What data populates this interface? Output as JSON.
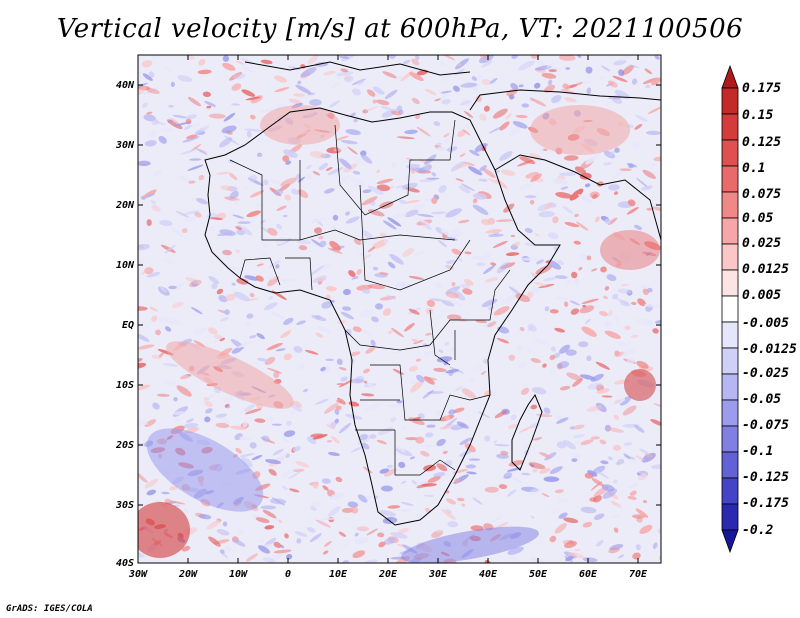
{
  "title": "Vertical velocity [m/s] at 600hPa, VT: 2021100506",
  "footer": "GrADS: IGES/COLA",
  "map": {
    "lon_range": [
      -30,
      75
    ],
    "lat_range": [
      -40,
      45
    ],
    "lat_labels": [
      "40N",
      "30N",
      "20N",
      "10N",
      "EQ",
      "10S",
      "20S",
      "30S",
      "40S"
    ],
    "lon_labels": [
      "30W",
      "20W",
      "10W",
      "0",
      "10E",
      "20E",
      "30E",
      "40E",
      "50E",
      "60E",
      "70E"
    ]
  },
  "colorbar": {
    "labels": [
      "0.175",
      "0.15",
      "0.125",
      "0.1",
      "0.075",
      "0.05",
      "0.025",
      "0.0125",
      "0.005",
      "-0.005",
      "-0.0125",
      "-0.025",
      "-0.05",
      "-0.075",
      "-0.1",
      "-0.125",
      "-0.175",
      "-0.2"
    ],
    "colors": [
      "#b01a1a",
      "#c42a2a",
      "#d43c3c",
      "#e05050",
      "#e86a6a",
      "#f08888",
      "#f6a6a6",
      "#fac6c6",
      "#fde4e4",
      "#ffffff",
      "#e6e6fb",
      "#cfcff8",
      "#b6b6f2",
      "#9c9cec",
      "#8080e2",
      "#6262d6",
      "#4444c6",
      "#2a2ab0",
      "#16169a"
    ]
  }
}
